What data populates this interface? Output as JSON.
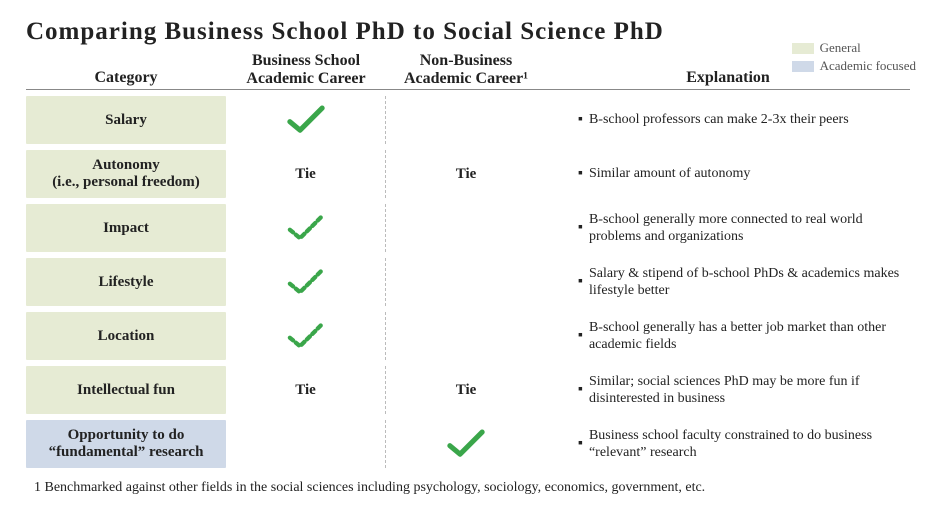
{
  "title": "Comparing Business School PhD to Social Science PhD",
  "columns": {
    "category": "Category",
    "col_a_line1": "Business School",
    "col_a_line2": "Academic Career",
    "col_b_line1": "Non-Business",
    "col_b_line2": "Academic Career¹",
    "explanation": "Explanation"
  },
  "legend": {
    "general": {
      "label": "General",
      "color": "#e6ebd4"
    },
    "academic": {
      "label": "Academic focused",
      "color": "#cfd9e8"
    }
  },
  "colors": {
    "row_general": "#e6ebd4",
    "row_academic": "#cfd9e8",
    "check_stroke": "#3aa64a",
    "text": "#222222"
  },
  "check_styles": {
    "solid": {
      "stroke_width": 6,
      "dash": ""
    },
    "dashed": {
      "stroke_width": 5,
      "dash": "5 4"
    }
  },
  "rows": [
    {
      "category": "Salary",
      "cat_html": "Salary",
      "band": "general",
      "a": {
        "type": "check",
        "style": "solid"
      },
      "b": {
        "type": "blank"
      },
      "explanation": "B-school professors can make 2-3x their peers"
    },
    {
      "category": "Autonomy",
      "cat_html": "Autonomy<br>(i.e., personal freedom)",
      "band": "general",
      "a": {
        "type": "text",
        "text": "Tie"
      },
      "b": {
        "type": "text",
        "text": "Tie"
      },
      "explanation": "Similar amount of autonomy"
    },
    {
      "category": "Impact",
      "cat_html": "Impact",
      "band": "general",
      "a": {
        "type": "check",
        "style": "dashed"
      },
      "b": {
        "type": "blank"
      },
      "explanation": "B-school generally more connected to real world problems and organizations"
    },
    {
      "category": "Lifestyle",
      "cat_html": "Lifestyle",
      "band": "general",
      "a": {
        "type": "check",
        "style": "dashed"
      },
      "b": {
        "type": "blank"
      },
      "explanation": "Salary & stipend of b-school PhDs & academics makes lifestyle better"
    },
    {
      "category": "Location",
      "cat_html": "Location",
      "band": "general",
      "a": {
        "type": "check",
        "style": "dashed"
      },
      "b": {
        "type": "blank"
      },
      "explanation": "B-school generally has a better job market than other academic fields"
    },
    {
      "category": "Intellectual fun",
      "cat_html": "Intellectual fun",
      "band": "general",
      "a": {
        "type": "text",
        "text": "Tie"
      },
      "b": {
        "type": "text",
        "text": "Tie"
      },
      "explanation": "Similar; social sciences PhD may be more fun if disinterested in business"
    },
    {
      "category": "Opportunity to do fundamental research",
      "cat_html": "Opportunity to do<br>“fundamental” research",
      "band": "academic",
      "a": {
        "type": "blank"
      },
      "b": {
        "type": "check",
        "style": "solid"
      },
      "explanation": "Business school faculty constrained to do business “relevant” research"
    }
  ],
  "footnote": "1 Benchmarked against other fields in the social sciences including psychology, sociology, economics, government, etc."
}
